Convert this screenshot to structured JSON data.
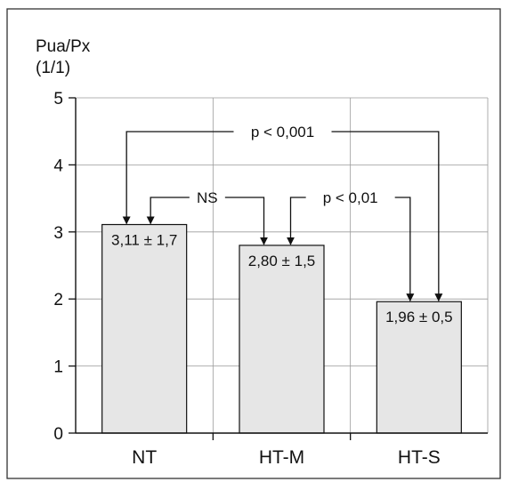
{
  "chart_data": {
    "type": "bar",
    "ylabel_line1": "Pua/Px",
    "ylabel_line2": "(1/1)",
    "ylim": [
      0,
      5
    ],
    "yticks": [
      "0",
      "1",
      "2",
      "3",
      "4",
      "5"
    ],
    "categories": [
      "NT",
      "HT-M",
      "HT-S"
    ],
    "values": [
      3.11,
      2.8,
      1.96
    ],
    "data_labels": [
      "3,11 ± 1,7",
      "2,80 ± 1,5",
      "1,96 ± 0,5"
    ],
    "grid": true,
    "bar_color": "#e6e6e6",
    "comparisons": [
      {
        "from": "NT",
        "to": "HT-M",
        "label": "NS"
      },
      {
        "from": "HT-M",
        "to": "HT-S",
        "label": "p < 0,01"
      },
      {
        "from": "NT",
        "to": "HT-S",
        "label": "p < 0,001"
      }
    ]
  }
}
